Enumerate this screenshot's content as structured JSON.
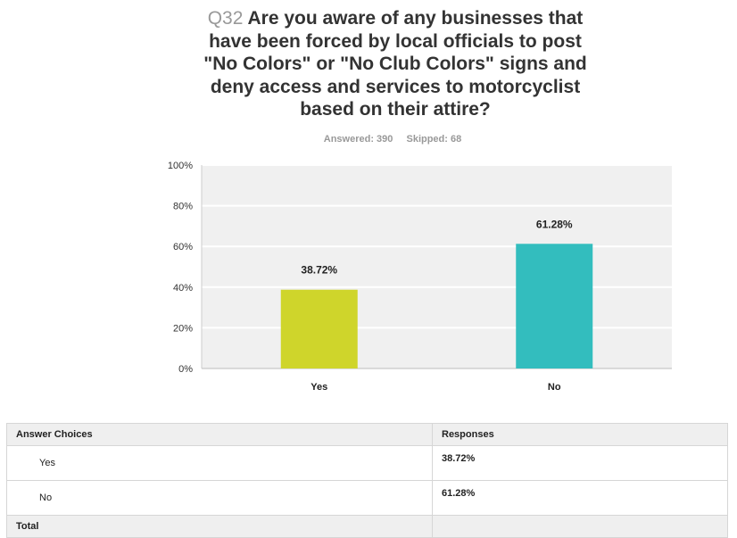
{
  "question": {
    "number": "Q32",
    "title_lines": [
      "Are you aware of any businesses that",
      "have been forced by local officials to post",
      "\"No Colors\" or \"No Club Colors\" signs and",
      "deny access and services to motorcyclist",
      "based on their attire?"
    ],
    "answered": "Answered: 390",
    "skipped": "Skipped: 68"
  },
  "chart_data": {
    "type": "bar",
    "categories": [
      "Yes",
      "No"
    ],
    "values": [
      38.72,
      61.28
    ],
    "data_labels": [
      "38.72%",
      "61.28%"
    ],
    "y_ticks": [
      "0%",
      "20%",
      "40%",
      "60%",
      "80%",
      "100%"
    ],
    "ylim": [
      0,
      100
    ],
    "grid": true,
    "colors": [
      "#cfd52b",
      "#33bdbe"
    ]
  },
  "table": {
    "headers": [
      "Answer Choices",
      "Responses"
    ],
    "rows": [
      {
        "choice": "Yes",
        "response": "38.72%"
      },
      {
        "choice": "No",
        "response": "61.28%"
      }
    ],
    "total_label": "Total"
  }
}
